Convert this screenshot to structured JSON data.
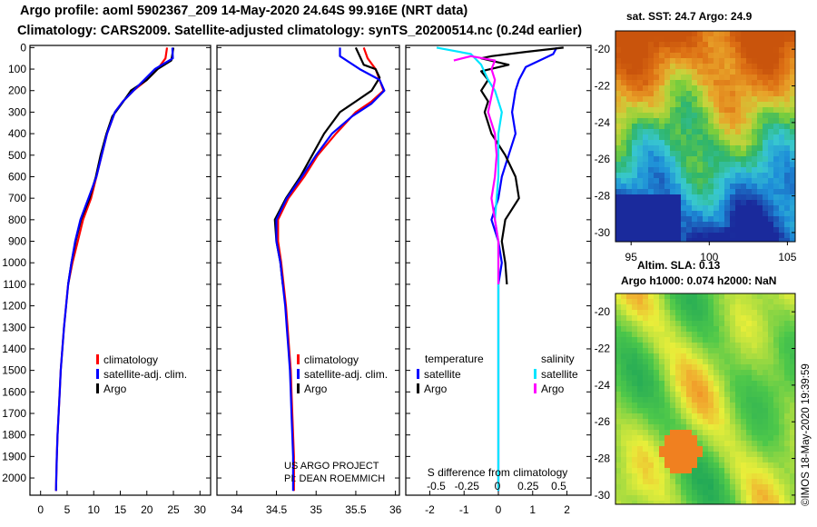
{
  "header": {
    "line1": "Argo profile: aoml 5902367_209 14-May-2020 24.64S 99.916E (NRT data)",
    "line2": "Climatology: CARS2009. Satellite-adjusted climatology: synTS_20200514.nc (0.24d earlier)"
  },
  "colors": {
    "climatology": "#ff0000",
    "satellite": "#0000ff",
    "argo": "#000000",
    "sal_satellite": "#00e5ff",
    "sal_argo": "#ff00ff"
  },
  "chart_data": [
    {
      "type": "line",
      "name": "temperature-profile",
      "xlim": [
        -2,
        32
      ],
      "ylim": [
        2080,
        -10
      ],
      "xticks": [
        0,
        5,
        10,
        15,
        20,
        25,
        30
      ],
      "xtick_labels": [
        "0",
        "5",
        "10",
        "15",
        "20",
        "25",
        "30"
      ],
      "yticks": [
        0,
        100,
        200,
        300,
        400,
        500,
        600,
        700,
        800,
        900,
        1000,
        1100,
        1200,
        1300,
        1400,
        1500,
        1600,
        1700,
        1800,
        1900,
        2000
      ],
      "ytick_labels": [
        "0",
        "100",
        "200",
        "300",
        "400",
        "500",
        "600",
        "700",
        "800",
        "900",
        "1000",
        "1100",
        "1200",
        "1300",
        "1400",
        "1500",
        "1600",
        "1700",
        "1800",
        "1900",
        "2000"
      ],
      "legend": [
        "climatology",
        "satellite-adj. clim.",
        "Argo"
      ],
      "series": [
        {
          "name": "climatology",
          "color": "red",
          "points": [
            [
              23.8,
              0
            ],
            [
              23.5,
              50
            ],
            [
              22,
              100
            ],
            [
              20,
              150
            ],
            [
              17.5,
              200
            ],
            [
              15.5,
              250
            ],
            [
              14,
              300
            ],
            [
              12.5,
              400
            ],
            [
              11.5,
              500
            ],
            [
              10.5,
              600
            ],
            [
              9.5,
              700
            ],
            [
              8,
              800
            ],
            [
              7,
              900
            ],
            [
              6,
              1000
            ],
            [
              5.2,
              1100
            ],
            [
              4.8,
              1200
            ],
            [
              4.4,
              1300
            ],
            [
              4.1,
              1400
            ],
            [
              3.8,
              1500
            ],
            [
              3.6,
              1600
            ],
            [
              3.4,
              1700
            ],
            [
              3.2,
              1800
            ],
            [
              3.05,
              1900
            ],
            [
              2.95,
              2000
            ],
            [
              2.9,
              2060
            ]
          ]
        },
        {
          "name": "satellite-adj. clim.",
          "color": "blue",
          "points": [
            [
              24.8,
              0
            ],
            [
              24.9,
              50
            ],
            [
              21.5,
              100
            ],
            [
              19.5,
              150
            ],
            [
              17.5,
              200
            ],
            [
              15.5,
              250
            ],
            [
              14,
              300
            ],
            [
              12.5,
              400
            ],
            [
              11.5,
              500
            ],
            [
              10.5,
              600
            ],
            [
              9,
              700
            ],
            [
              7.5,
              800
            ],
            [
              6.5,
              900
            ],
            [
              5.8,
              1000
            ],
            [
              5.2,
              1100
            ],
            [
              4.8,
              1200
            ],
            [
              4.4,
              1300
            ],
            [
              4.1,
              1400
            ],
            [
              3.8,
              1500
            ],
            [
              3.6,
              1600
            ],
            [
              3.4,
              1700
            ],
            [
              3.2,
              1800
            ],
            [
              3.05,
              1900
            ],
            [
              2.95,
              2000
            ],
            [
              2.9,
              2060
            ]
          ]
        },
        {
          "name": "Argo",
          "color": "black",
          "points": [
            [
              25,
              0
            ],
            [
              24.8,
              30
            ],
            [
              24.6,
              60
            ],
            [
              22,
              100
            ],
            [
              20,
              150
            ],
            [
              17,
              200
            ],
            [
              15.3,
              260
            ],
            [
              13.5,
              320
            ],
            [
              12.4,
              400
            ],
            [
              11.3,
              500
            ],
            [
              10.4,
              600
            ],
            [
              9.2,
              700
            ],
            [
              7.6,
              800
            ],
            [
              6.6,
              900
            ],
            [
              5.8,
              1000
            ],
            [
              5.2,
              1100
            ]
          ]
        }
      ]
    },
    {
      "type": "line",
      "name": "salinity-profile",
      "xlim": [
        33.75,
        36.05
      ],
      "ylim": [
        2080,
        -10
      ],
      "xticks": [
        34,
        34.5,
        35,
        35.5,
        36
      ],
      "xtick_labels": [
        "34",
        "34.5",
        "35",
        "35.5",
        "36"
      ],
      "legend": [
        "climatology",
        "satellite-adj. clim.",
        "Argo"
      ],
      "annotation": [
        "US ARGO PROJECT",
        "PI: DEAN ROEMMICH"
      ],
      "series": [
        {
          "name": "climatology",
          "color": "red",
          "points": [
            [
              35.6,
              0
            ],
            [
              35.65,
              50
            ],
            [
              35.75,
              100
            ],
            [
              35.85,
              200
            ],
            [
              35.7,
              250
            ],
            [
              35.5,
              300
            ],
            [
              35.25,
              400
            ],
            [
              35.02,
              500
            ],
            [
              34.85,
              600
            ],
            [
              34.65,
              700
            ],
            [
              34.52,
              800
            ],
            [
              34.52,
              900
            ],
            [
              34.56,
              1000
            ],
            [
              34.59,
              1100
            ],
            [
              34.62,
              1200
            ],
            [
              34.64,
              1300
            ],
            [
              34.66,
              1400
            ],
            [
              34.68,
              1500
            ],
            [
              34.69,
              1600
            ],
            [
              34.7,
              1700
            ],
            [
              34.71,
              1800
            ],
            [
              34.72,
              1900
            ],
            [
              34.72,
              2000
            ],
            [
              34.72,
              2060
            ]
          ]
        },
        {
          "name": "satellite-adj. clim.",
          "color": "blue",
          "points": [
            [
              35.3,
              0
            ],
            [
              35.3,
              40
            ],
            [
              35.55,
              100
            ],
            [
              35.8,
              150
            ],
            [
              35.86,
              200
            ],
            [
              35.7,
              260
            ],
            [
              35.45,
              320
            ],
            [
              35.2,
              400
            ],
            [
              35.0,
              500
            ],
            [
              34.82,
              600
            ],
            [
              34.63,
              700
            ],
            [
              34.5,
              800
            ],
            [
              34.5,
              900
            ],
            [
              34.55,
              1000
            ],
            [
              34.58,
              1100
            ],
            [
              34.61,
              1200
            ],
            [
              34.63,
              1300
            ],
            [
              34.65,
              1400
            ],
            [
              34.67,
              1500
            ],
            [
              34.68,
              1600
            ],
            [
              34.69,
              1700
            ],
            [
              34.7,
              1800
            ],
            [
              34.71,
              1900
            ],
            [
              34.71,
              2000
            ],
            [
              34.71,
              2060
            ]
          ]
        },
        {
          "name": "Argo",
          "color": "black",
          "points": [
            [
              35.5,
              0
            ],
            [
              35.55,
              40
            ],
            [
              35.6,
              80
            ],
            [
              35.75,
              100
            ],
            [
              35.8,
              140
            ],
            [
              35.7,
              200
            ],
            [
              35.5,
              250
            ],
            [
              35.3,
              300
            ],
            [
              35.1,
              400
            ],
            [
              34.95,
              500
            ],
            [
              34.8,
              600
            ],
            [
              34.62,
              700
            ],
            [
              34.48,
              800
            ],
            [
              34.5,
              900
            ],
            [
              34.55,
              1000
            ],
            [
              34.58,
              1100
            ]
          ]
        }
      ]
    },
    {
      "type": "line",
      "name": "difference-profile",
      "xlim": [
        -2.7,
        2.7
      ],
      "ylim": [
        2080,
        -10
      ],
      "xticks": [
        -2,
        -1,
        0,
        1,
        2
      ],
      "xtick_labels": [
        "-2",
        "-1",
        "0",
        "1",
        "2"
      ],
      "top_axis_ticks": [
        -0.5,
        -0.25,
        0,
        0.25,
        0.5
      ],
      "top_axis_labels": [
        "-0.5",
        "-0.25",
        "0",
        "0.25",
        "0.5"
      ],
      "top_axis_title": "S difference from climatology",
      "legend_groups": {
        "temperature": [
          "satellite",
          "Argo"
        ],
        "salinity": [
          "satellite",
          "Argo"
        ]
      },
      "series": [
        {
          "name": "temperature satellite",
          "color": "blue",
          "points": [
            [
              1.7,
              0
            ],
            [
              1.6,
              30
            ],
            [
              1.2,
              60
            ],
            [
              0.8,
              90
            ],
            [
              0.6,
              150
            ],
            [
              0.5,
              200
            ],
            [
              0.4,
              300
            ],
            [
              0.5,
              400
            ],
            [
              0.3,
              500
            ],
            [
              0.1,
              600
            ],
            [
              0,
              700
            ],
            [
              -0.2,
              800
            ],
            [
              0,
              900
            ],
            [
              0.1,
              1000
            ],
            [
              0,
              1100
            ],
            [
              0,
              1300
            ],
            [
              0,
              1500
            ],
            [
              0,
              1700
            ],
            [
              0,
              2060
            ]
          ]
        },
        {
          "name": "temperature Argo",
          "color": "black",
          "points": [
            [
              1.9,
              0
            ],
            [
              0.8,
              20
            ],
            [
              -0.2,
              40
            ],
            [
              -0.5,
              50
            ],
            [
              0.3,
              80
            ],
            [
              -0.5,
              110
            ],
            [
              -0.3,
              150
            ],
            [
              -0.5,
              200
            ],
            [
              -0.3,
              250
            ],
            [
              -0.4,
              300
            ],
            [
              -0.2,
              400
            ],
            [
              0.2,
              500
            ],
            [
              0.5,
              600
            ],
            [
              0.6,
              700
            ],
            [
              0.2,
              800
            ],
            [
              0.1,
              900
            ],
            [
              0.2,
              1000
            ],
            [
              0.25,
              1100
            ]
          ]
        },
        {
          "name": "salinity satellite",
          "color": "cyan",
          "points": [
            [
              -1.8,
              0
            ],
            [
              -0.8,
              30
            ],
            [
              -0.5,
              80
            ],
            [
              -0.3,
              150
            ],
            [
              -0.1,
              200
            ],
            [
              0.1,
              300
            ],
            [
              0,
              400
            ],
            [
              0,
              600
            ],
            [
              -0.1,
              800
            ],
            [
              0,
              900
            ],
            [
              0,
              1000
            ],
            [
              0,
              1100
            ],
            [
              0,
              1300
            ],
            [
              0,
              1500
            ],
            [
              0,
              1700
            ],
            [
              0,
              2060
            ]
          ]
        },
        {
          "name": "salinity Argo",
          "color": "magenta",
          "points": [
            [
              -1.3,
              60
            ],
            [
              -0.8,
              40
            ],
            [
              -0.1,
              60
            ],
            [
              -0.2,
              100
            ],
            [
              -0.1,
              150
            ],
            [
              -0.3,
              300
            ],
            [
              -0.1,
              400
            ],
            [
              -0.05,
              500
            ],
            [
              -0.1,
              600
            ],
            [
              -0.2,
              700
            ],
            [
              -0.1,
              800
            ],
            [
              0,
              900
            ],
            [
              0,
              1000
            ],
            [
              0,
              1100
            ]
          ]
        }
      ]
    },
    {
      "type": "heatmap",
      "name": "sst-map",
      "title": "sat. SST: 24.7 Argo: 24.9",
      "xlim": [
        94,
        105.5
      ],
      "ylim": [
        -30.5,
        -19
      ],
      "xticks": [
        95,
        100,
        105
      ],
      "xtick_labels": [
        "95",
        "100",
        "105"
      ],
      "yticks": [
        -20,
        -22,
        -24,
        -26,
        -28,
        -30
      ],
      "ytick_labels": [
        "-20",
        "-22",
        "-24",
        "-26",
        "-28",
        "-30"
      ],
      "profile_location": [
        99.916,
        -24.64
      ]
    },
    {
      "type": "heatmap",
      "name": "sla-map",
      "title": "Altim. SLA: 0.13",
      "subtitle": "Argo h1000: 0.074 h2000: NaN",
      "xlim": [
        94,
        105.5
      ],
      "ylim": [
        -30.5,
        -19
      ],
      "yticks": [
        -20,
        -22,
        -24,
        -26,
        -28,
        -30
      ],
      "ytick_labels": [
        "-20",
        "-22",
        "-24",
        "-26",
        "-28",
        "-30"
      ]
    }
  ],
  "footer": {
    "stamp": "©IMOS 18-May-2020 19:39:59"
  }
}
